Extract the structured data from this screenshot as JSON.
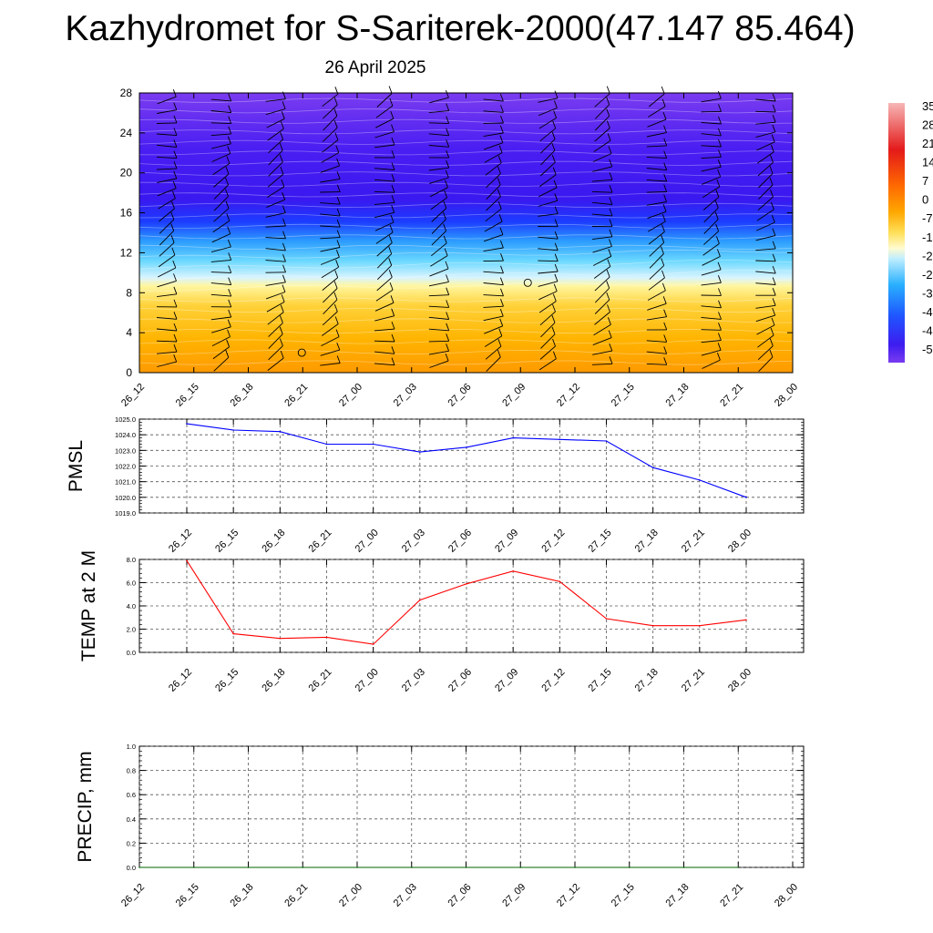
{
  "title": "Kazhydromet for S-Sariterek-2000(47.147 85.464)",
  "subtitle": "26 April 2025",
  "colorbar_labels": [
    "35",
    "28",
    "21",
    "14",
    "7",
    "0",
    "-7",
    "-1",
    "-2",
    "-2",
    "-3",
    "-4",
    "-4",
    "-5"
  ],
  "colors": {
    "pmsl_line": "#0000ff",
    "temp_line": "#ff0000",
    "precip_line": "#006400"
  },
  "chart_data": [
    {
      "type": "heatmap",
      "name": "cross-section",
      "variable": "temperature",
      "x_ticks": [
        "26_12",
        "26_15",
        "26_18",
        "26_21",
        "27_00",
        "27_03",
        "27_06",
        "27_09",
        "27_12",
        "27_15",
        "27_18",
        "27_21",
        "28_00"
      ],
      "y_ticks": [
        "0",
        "4",
        "8",
        "12",
        "16",
        "20",
        "24",
        "28"
      ],
      "ylim": [
        0,
        28
      ],
      "overlay": "wind barbs"
    },
    {
      "type": "line",
      "ylabel": "PMSL",
      "x_ticks": [
        "26_12",
        "26_15",
        "26_18",
        "26_21",
        "27_00",
        "27_03",
        "27_06",
        "27_09",
        "27_12",
        "27_15",
        "27_18",
        "27_21",
        "28_00"
      ],
      "y_ticks": [
        "1019.0",
        "1020.0",
        "1021.0",
        "1022.0",
        "1023.0",
        "1024.0",
        "1025.0"
      ],
      "ylim": [
        1019,
        1025
      ],
      "values": [
        1024.7,
        1024.3,
        1024.2,
        1023.4,
        1023.4,
        1022.9,
        1023.2,
        1023.8,
        1023.7,
        1023.6,
        1021.9,
        1021.1,
        1020.0
      ],
      "grid": true
    },
    {
      "type": "line",
      "ylabel": "TEMP at 2 M",
      "x_ticks": [
        "26_12",
        "26_15",
        "26_18",
        "26_21",
        "27_00",
        "27_03",
        "27_06",
        "27_09",
        "27_12",
        "27_15",
        "27_18",
        "27_21",
        "28_00"
      ],
      "y_ticks": [
        "0.0",
        "2.0",
        "4.0",
        "6.0",
        "8.0"
      ],
      "ylim": [
        0,
        8
      ],
      "values": [
        7.9,
        1.6,
        1.2,
        1.3,
        0.7,
        4.5,
        5.9,
        7.0,
        6.1,
        2.9,
        2.3,
        2.3,
        2.8
      ],
      "grid": true
    },
    {
      "type": "line",
      "ylabel": "PRECIP, mm",
      "x_ticks": [
        "26_12",
        "26_15",
        "26_18",
        "26_21",
        "27_00",
        "27_03",
        "27_06",
        "27_09",
        "27_12",
        "27_15",
        "27_18",
        "27_21",
        "28_00"
      ],
      "y_ticks": [
        "0.0",
        "0.2",
        "0.4",
        "0.6",
        "0.8",
        "1.0"
      ],
      "ylim": [
        0,
        1
      ],
      "values": [
        0,
        0,
        0,
        0,
        0,
        0,
        0,
        0,
        0,
        0,
        0,
        0
      ],
      "grid": true
    }
  ]
}
